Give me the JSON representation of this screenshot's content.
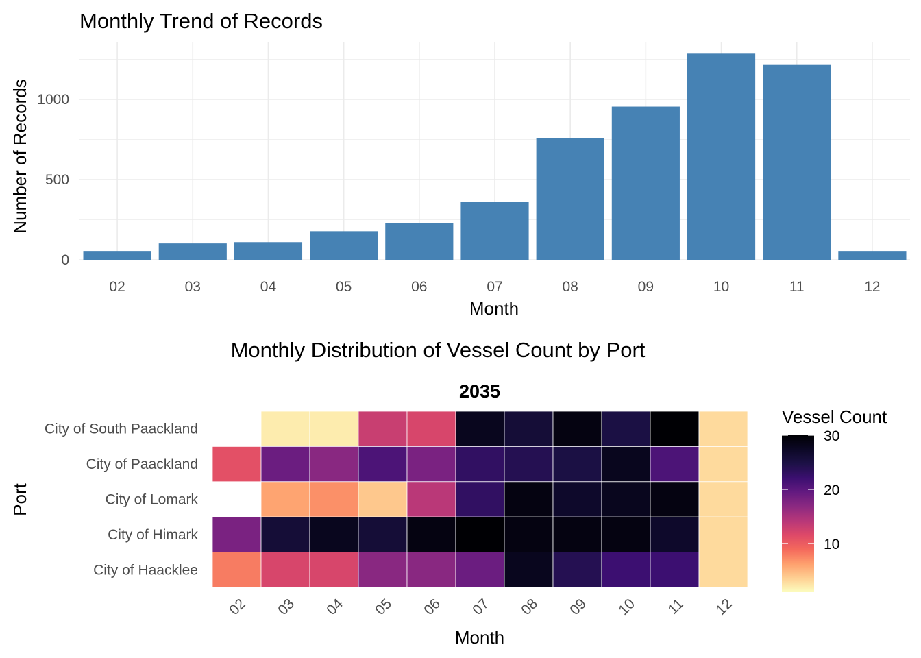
{
  "chart_data": [
    {
      "type": "bar",
      "title": "Monthly Trend of Records",
      "xlabel": "Month",
      "ylabel": "Number of Records",
      "categories": [
        "02",
        "03",
        "04",
        "05",
        "06",
        "07",
        "08",
        "09",
        "10",
        "11",
        "12"
      ],
      "values": [
        55,
        102,
        110,
        178,
        230,
        362,
        760,
        955,
        1285,
        1215,
        55
      ],
      "ylim": [
        0,
        1300
      ],
      "yticks": [
        "0",
        "500",
        "1000"
      ],
      "color": "#4682B4",
      "grid": true
    },
    {
      "type": "heatmap",
      "title": "Monthly Distribution of Vessel Count by Port",
      "subtitle": "2035",
      "xlabel": "Month",
      "ylabel": "Port",
      "x": [
        "02",
        "03",
        "04",
        "05",
        "06",
        "07",
        "08",
        "09",
        "10",
        "11",
        "12"
      ],
      "y": [
        "City of South Paackland",
        "City of Paackland",
        "City of Lomark",
        "City of Himark",
        "City of Haacklee"
      ],
      "values": [
        [
          null,
          2,
          2,
          13,
          12,
          28,
          26,
          29,
          25,
          30,
          3
        ],
        [
          11,
          19,
          17,
          21,
          18,
          23,
          24,
          25,
          28,
          21,
          3
        ],
        [
          null,
          6,
          7,
          4,
          14,
          23,
          29,
          27,
          28,
          29,
          3
        ],
        [
          18,
          26,
          28,
          26,
          29,
          30,
          29,
          29,
          29,
          27,
          3
        ],
        [
          8,
          12,
          12,
          17,
          17,
          19,
          28,
          24,
          22,
          22,
          3
        ]
      ],
      "colorscale": "magma (reversed)",
      "legend": {
        "title": "Vessel Count",
        "ticks": [
          "10",
          "20",
          "30"
        ],
        "min": 1,
        "max": 30,
        "placement": "right"
      }
    }
  ]
}
